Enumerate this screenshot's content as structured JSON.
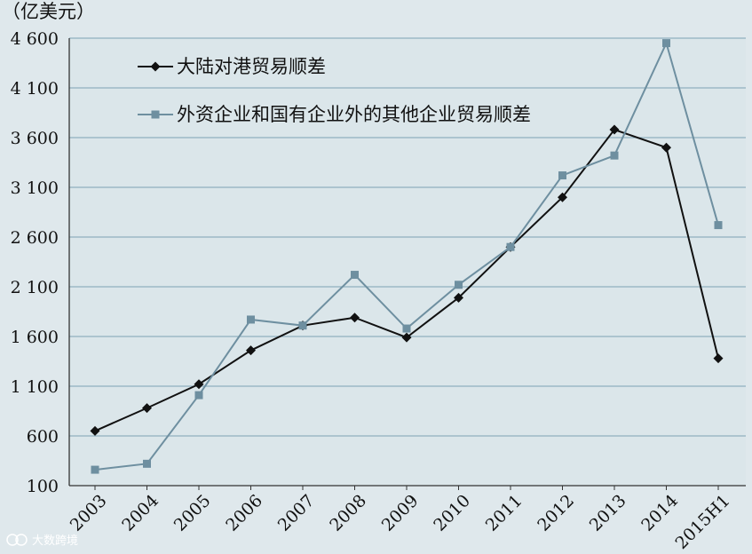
{
  "chart_data": {
    "type": "line",
    "unit_label": "（亿美元）",
    "categories": [
      "2003",
      "2004",
      "2005",
      "2006",
      "2007",
      "2008",
      "2009",
      "2010",
      "2011",
      "2012",
      "2013",
      "2014",
      "2015H1"
    ],
    "y_ticks": [
      "100",
      "600",
      "1 100",
      "1 600",
      "2 100",
      "2 600",
      "3 100",
      "3 600",
      "4 100",
      "4 600"
    ],
    "ylim": [
      100,
      4600
    ],
    "grid": true,
    "legend_position": "top-left",
    "series": [
      {
        "name": "大陆对港贸易顺差",
        "color": "#111111",
        "marker": "diamond",
        "values": [
          650,
          880,
          1120,
          1460,
          1710,
          1790,
          1590,
          1990,
          2500,
          3000,
          3680,
          3500,
          1380
        ]
      },
      {
        "name": "外资企业和国有企业外的其他企业贸易顺差",
        "color": "#6e8fa0",
        "marker": "square",
        "values": [
          260,
          320,
          1010,
          1770,
          1710,
          2220,
          1680,
          2120,
          2500,
          3220,
          3420,
          4550,
          2720
        ]
      }
    ]
  },
  "watermark": {
    "icon": "ship-logo-icon",
    "text": "大数跨境"
  }
}
